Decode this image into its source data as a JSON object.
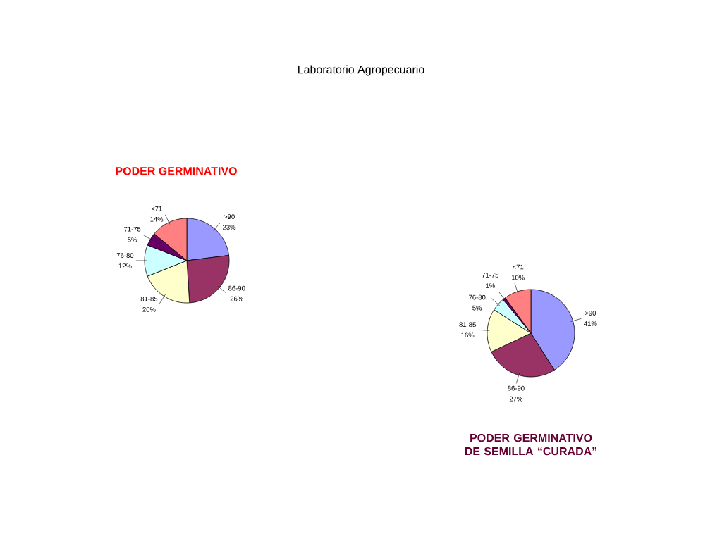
{
  "chart_data": [
    {
      "type": "pie",
      "title": "PODER GERMINATIVO",
      "annotations": [
        "Laboratorio Agropecuario"
      ],
      "categories": [
        ">90",
        "86-90",
        "81-85",
        "76-80",
        "71-75",
        "<71"
      ],
      "values": [
        23,
        26,
        20,
        12,
        5,
        14
      ],
      "value_labels": [
        "23%",
        "26%",
        "20%",
        "12%",
        "5%",
        "14%"
      ],
      "colors": [
        "#9999ff",
        "#993366",
        "#ffffcc",
        "#ccffff",
        "#660066",
        "#ff8080"
      ]
    },
    {
      "type": "pie",
      "title": "PODER GERMINATIVO DE SEMILLA “CURADA”",
      "categories": [
        ">90",
        "86-90",
        "81-85",
        "76-80",
        "71-75",
        "<71"
      ],
      "values": [
        41,
        27,
        16,
        5,
        1,
        10
      ],
      "value_labels": [
        "41%",
        "27%",
        "16%",
        "5%",
        "1%",
        "10%"
      ],
      "colors": [
        "#9999ff",
        "#993366",
        "#ffffcc",
        "#ccffff",
        "#660066",
        "#ff8080"
      ]
    }
  ]
}
